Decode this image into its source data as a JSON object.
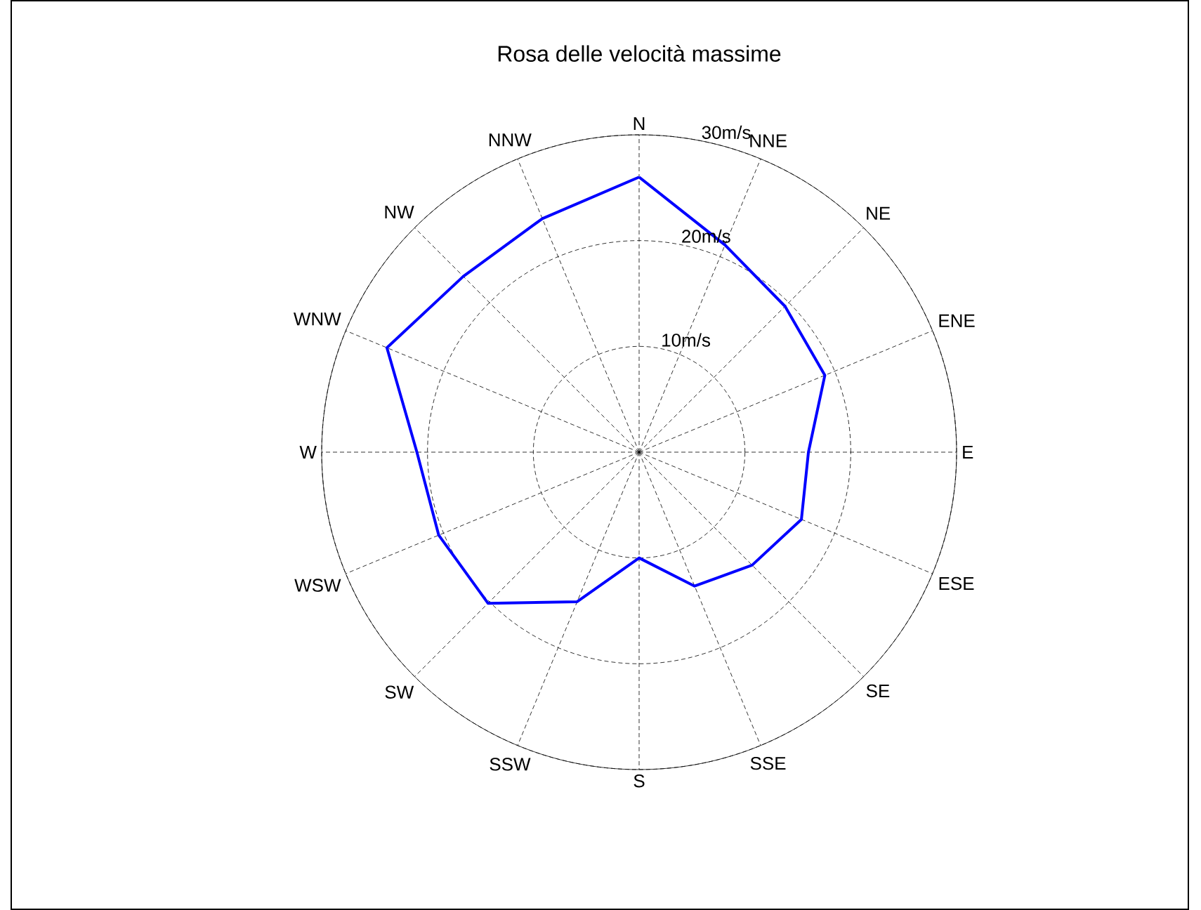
{
  "chart_data": {
    "type": "radar",
    "title": "Rosa delle velocità massime",
    "categories": [
      "N",
      "NNE",
      "NE",
      "ENE",
      "E",
      "ESE",
      "SE",
      "SSE",
      "S",
      "SSW",
      "SW",
      "WSW",
      "W",
      "WNW",
      "NW",
      "NNW"
    ],
    "series": [
      {
        "color": "#0000ff",
        "values": [
          26.0,
          21.2,
          19.5,
          19.0,
          16.0,
          16.6,
          15.1,
          13.7,
          10.0,
          15.3,
          20.2,
          20.5,
          21.0,
          25.8,
          23.5,
          23.9
        ]
      }
    ],
    "ylim": [
      0,
      30
    ],
    "yticks": [
      {
        "value": 10,
        "label": "10m/s"
      },
      {
        "value": 20,
        "label": "20m/s"
      },
      {
        "value": 30,
        "label": "30m/s"
      }
    ],
    "grid": true,
    "marker": "none",
    "line_style": "solid"
  }
}
